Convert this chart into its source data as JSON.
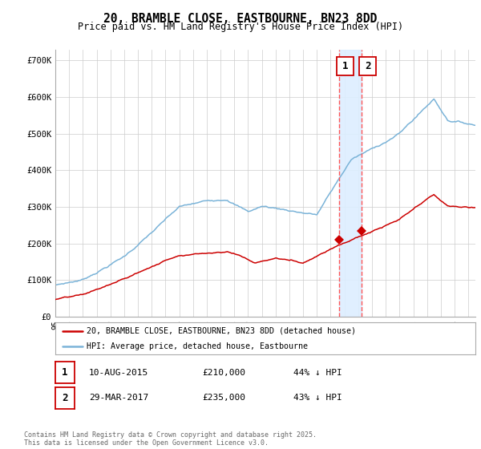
{
  "title": "20, BRAMBLE CLOSE, EASTBOURNE, BN23 8DD",
  "subtitle": "Price paid vs. HM Land Registry's House Price Index (HPI)",
  "legend_line1": "20, BRAMBLE CLOSE, EASTBOURNE, BN23 8DD (detached house)",
  "legend_line2": "HPI: Average price, detached house, Eastbourne",
  "annotation1_date": "10-AUG-2015",
  "annotation1_price": "£210,000",
  "annotation1_hpi": "44% ↓ HPI",
  "annotation2_date": "29-MAR-2017",
  "annotation2_price": "£235,000",
  "annotation2_hpi": "43% ↓ HPI",
  "vline1_year": 2015.608,
  "vline2_year": 2017.247,
  "footer": "Contains HM Land Registry data © Crown copyright and database right 2025.\nThis data is licensed under the Open Government Licence v3.0.",
  "hpi_color": "#7ab3d8",
  "price_color": "#cc0000",
  "chart_bg": "#ffffff",
  "grid_color": "#cccccc",
  "span_color": "#ddeeff",
  "vline_color": "#ff5555",
  "ann_box_color": "#cc0000",
  "legend_border": "#aaaaaa",
  "footer_color": "#666666",
  "yticks": [
    0,
    100000,
    200000,
    300000,
    400000,
    500000,
    600000,
    700000
  ],
  "ylabels": [
    "£0",
    "£100K",
    "£200K",
    "£300K",
    "£400K",
    "£500K",
    "£600K",
    "£700K"
  ],
  "xstart": 1995,
  "xend": 2026,
  "ymin": 0,
  "ymax": 730000
}
